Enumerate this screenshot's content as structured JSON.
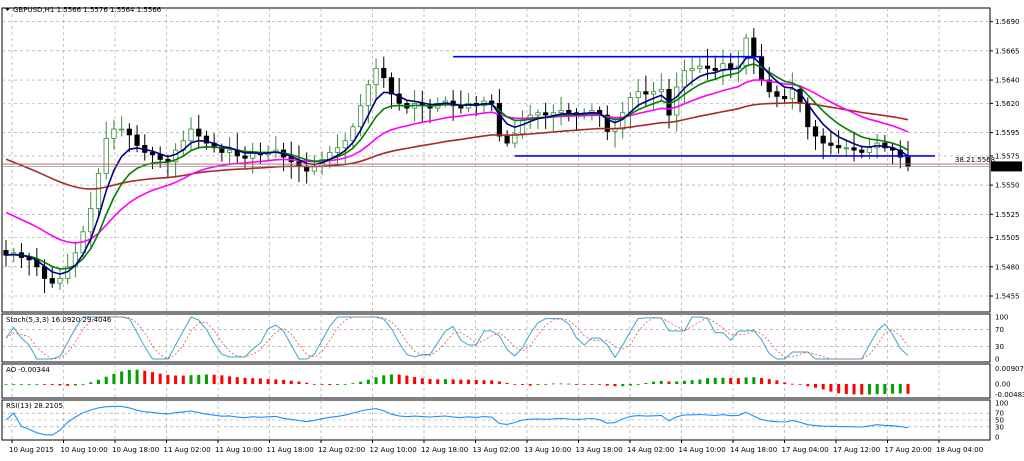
{
  "chart_data": {
    "type": "candlestick",
    "symbol_title": "GBPUSD,H1  1.5566 1.5576 1.5564 1.5566",
    "last_price_label": "1.5566",
    "fib_label": "38.21.5568",
    "price_axis": {
      "ylim": [
        1.5443,
        1.57
      ],
      "ticks": [
        "1.5690",
        "1.5665",
        "1.5640",
        "1.5620",
        "1.5595",
        "1.5575",
        "1.5550",
        "1.5525",
        "1.5505",
        "1.5480",
        "1.5455"
      ]
    },
    "time_axis": {
      "labels": [
        "10 Aug 2015",
        "10 Aug 10:00",
        "10 Aug 18:00",
        "11 Aug 02:00",
        "11 Aug 10:00",
        "11 Aug 18:00",
        "12 Aug 02:00",
        "12 Aug 10:00",
        "12 Aug 18:00",
        "13 Aug 02:00",
        "13 Aug 10:00",
        "13 Aug 18:00",
        "14 Aug 02:00",
        "14 Aug 10:00",
        "14 Aug 18:00",
        "17 Aug 04:00",
        "17 Aug 12:00",
        "17 Aug 20:00",
        "18 Aug 04:00"
      ]
    },
    "ohlc_close_path": [
      1.549,
      1.5492,
      1.5488,
      1.5486,
      1.548,
      1.547,
      1.5466,
      1.547,
      1.548,
      1.5492,
      1.551,
      1.553,
      1.556,
      1.559,
      1.5598,
      1.5598,
      1.5593,
      1.5584,
      1.5578,
      1.5576,
      1.5572,
      1.557,
      1.558,
      1.5588,
      1.5598,
      1.5592,
      1.5586,
      1.5582,
      1.5578,
      1.558,
      1.5575,
      1.5573,
      1.5578,
      1.5576,
      1.5578,
      1.558,
      1.5574,
      1.557,
      1.5566,
      1.5562,
      1.5566,
      1.5572,
      1.5578,
      1.5582,
      1.5588,
      1.56,
      1.5618,
      1.5636,
      1.565,
      1.5642,
      1.5628,
      1.562,
      1.5616,
      1.562,
      1.5618,
      1.5616,
      1.562,
      1.5622,
      1.5618,
      1.5616,
      1.562,
      1.5618,
      1.5622,
      1.562,
      1.5592,
      1.5586,
      1.5594,
      1.5606,
      1.561,
      1.5612,
      1.561,
      1.5612,
      1.5614,
      1.5612,
      1.561,
      1.5612,
      1.5614,
      1.561,
      1.5596,
      1.5598,
      1.5612,
      1.5625,
      1.563,
      1.5628,
      1.563,
      1.5632,
      1.561,
      1.5634,
      1.5648,
      1.565,
      1.5652,
      1.565,
      1.5648,
      1.5654,
      1.565,
      1.5652,
      1.5676,
      1.566,
      1.564,
      1.563,
      1.5626,
      1.5624,
      1.5632,
      1.562,
      1.56,
      1.5592,
      1.5586,
      1.5584,
      1.5582,
      1.5582,
      1.558,
      1.5578,
      1.5582,
      1.5586,
      1.5582,
      1.558,
      1.5574,
      1.5566
    ],
    "resistance_level": 1.566,
    "support_level": 1.5575,
    "fib_level": 1.5568,
    "indicators": {
      "stoch_title": "Stoch(5,3,3) 16.0920 29.4046",
      "stoch_ticks": [
        "100",
        "70",
        "30",
        "0"
      ],
      "ao_title": "AO -0.00344",
      "ao_ticks": [
        "0.00907",
        "0.00",
        "-0.00483"
      ],
      "rsi_title": "RSI(13) 28.2105",
      "rsi_ticks": [
        "100",
        "70",
        "50",
        "30",
        "0"
      ]
    },
    "colors": {
      "ma_fast": "#000080",
      "ma_mid": "#008000",
      "ma_slow": "#ff00ff",
      "ma_long": "#a52a2a",
      "levels": "#0000ff",
      "ao_up": "#00a000",
      "ao_down": "#ff0000",
      "rsi": "#1e90ff"
    }
  }
}
